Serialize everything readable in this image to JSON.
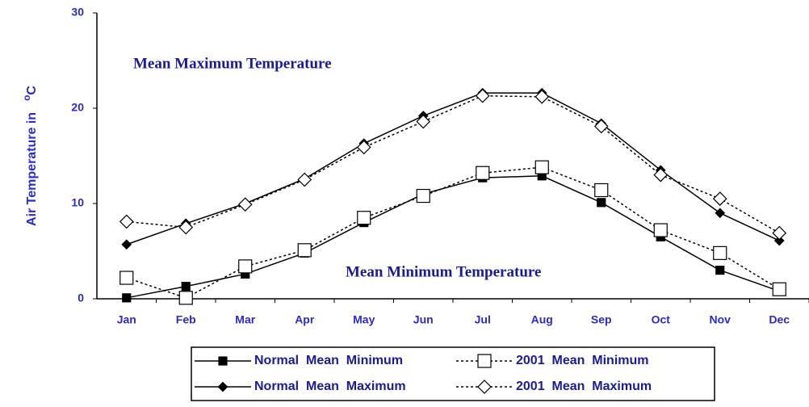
{
  "chart_data": {
    "type": "line",
    "y_label": "Air Temperature in",
    "y_label_sup": "o",
    "y_label_unit": "C",
    "annotations": [
      "Mean Maximum Temperature",
      "Mean Minimum Temperature"
    ],
    "categories": [
      "Jan",
      "Feb",
      "Mar",
      "Apr",
      "May",
      "Jun",
      "Jul",
      "Aug",
      "Sep",
      "Oct",
      "Nov",
      "Dec"
    ],
    "series": [
      {
        "name": "Normal  Mean  Minimum",
        "color": "#000000",
        "marker": "square",
        "filled": true,
        "dashed": false,
        "values": [
          0.1,
          1.3,
          2.6,
          4.8,
          8.0,
          11.0,
          12.7,
          12.9,
          10.1,
          6.5,
          3.0,
          0.8
        ]
      },
      {
        "name": "2001  Mean  Minimum",
        "color": "#000000",
        "marker": "square",
        "filled": false,
        "dashed": true,
        "values": [
          2.2,
          0.1,
          3.4,
          5.1,
          8.5,
          10.8,
          13.2,
          13.8,
          11.4,
          7.2,
          4.8,
          1.0
        ]
      },
      {
        "name": "Normal  Mean  Maximum",
        "color": "#000000",
        "marker": "diamond",
        "filled": true,
        "dashed": false,
        "values": [
          5.7,
          7.9,
          10.0,
          12.6,
          16.3,
          19.2,
          21.6,
          21.6,
          18.4,
          13.5,
          9.0,
          6.1
        ]
      },
      {
        "name": "2001  Mean  Maximum",
        "color": "#000000",
        "marker": "diamond",
        "filled": false,
        "dashed": true,
        "values": [
          8.1,
          7.5,
          9.9,
          12.5,
          15.9,
          18.6,
          21.3,
          21.2,
          18.1,
          13.0,
          10.5,
          6.9
        ]
      }
    ],
    "ylim": [
      0,
      30
    ],
    "yticks": [
      0,
      10,
      20,
      30
    ],
    "grid": false
  }
}
